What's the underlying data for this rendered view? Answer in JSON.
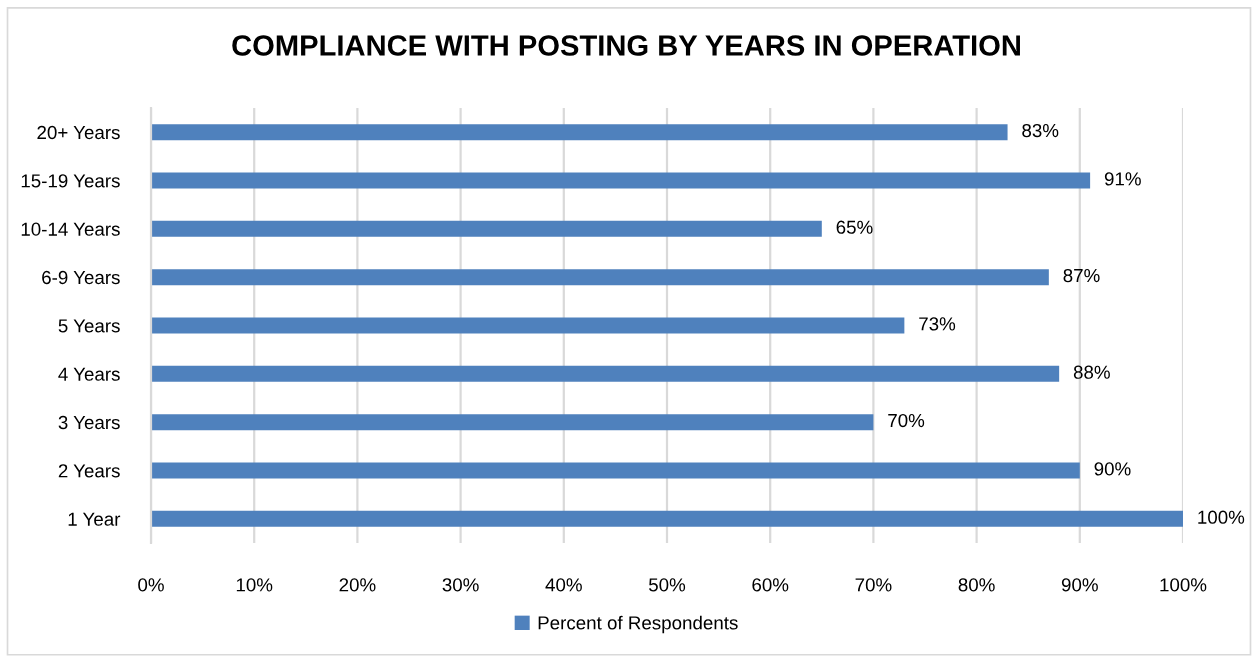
{
  "chart_data": {
    "type": "bar",
    "orientation": "horizontal",
    "title": "COMPLIANCE WITH POSTING BY YEARS IN OPERATION",
    "categories": [
      "20+ Years",
      "15-19 Years",
      "10-14 Years",
      "6-9 Years",
      "5 Years",
      "4 Years",
      "3 Years",
      "2 Years",
      "1 Year"
    ],
    "series": [
      {
        "name": "Percent of Respondents",
        "color": "#4f81bd",
        "values": [
          83,
          91,
          65,
          87,
          73,
          88,
          70,
          90,
          100
        ],
        "value_labels": [
          "83%",
          "91%",
          "65%",
          "87%",
          "73%",
          "88%",
          "70%",
          "90%",
          "100%"
        ]
      }
    ],
    "xlim": [
      0,
      100
    ],
    "xticks": [
      {
        "value": 0,
        "label": "0%"
      },
      {
        "value": 10,
        "label": "10%"
      },
      {
        "value": 20,
        "label": "20%"
      },
      {
        "value": 30,
        "label": "30%"
      },
      {
        "value": 40,
        "label": "40%"
      },
      {
        "value": 50,
        "label": "50%"
      },
      {
        "value": 60,
        "label": "60%"
      },
      {
        "value": 70,
        "label": "70%"
      },
      {
        "value": 80,
        "label": "80%"
      },
      {
        "value": 90,
        "label": "90%"
      },
      {
        "value": 100,
        "label": "100%"
      }
    ],
    "grid": "x",
    "legend": "bottom"
  }
}
